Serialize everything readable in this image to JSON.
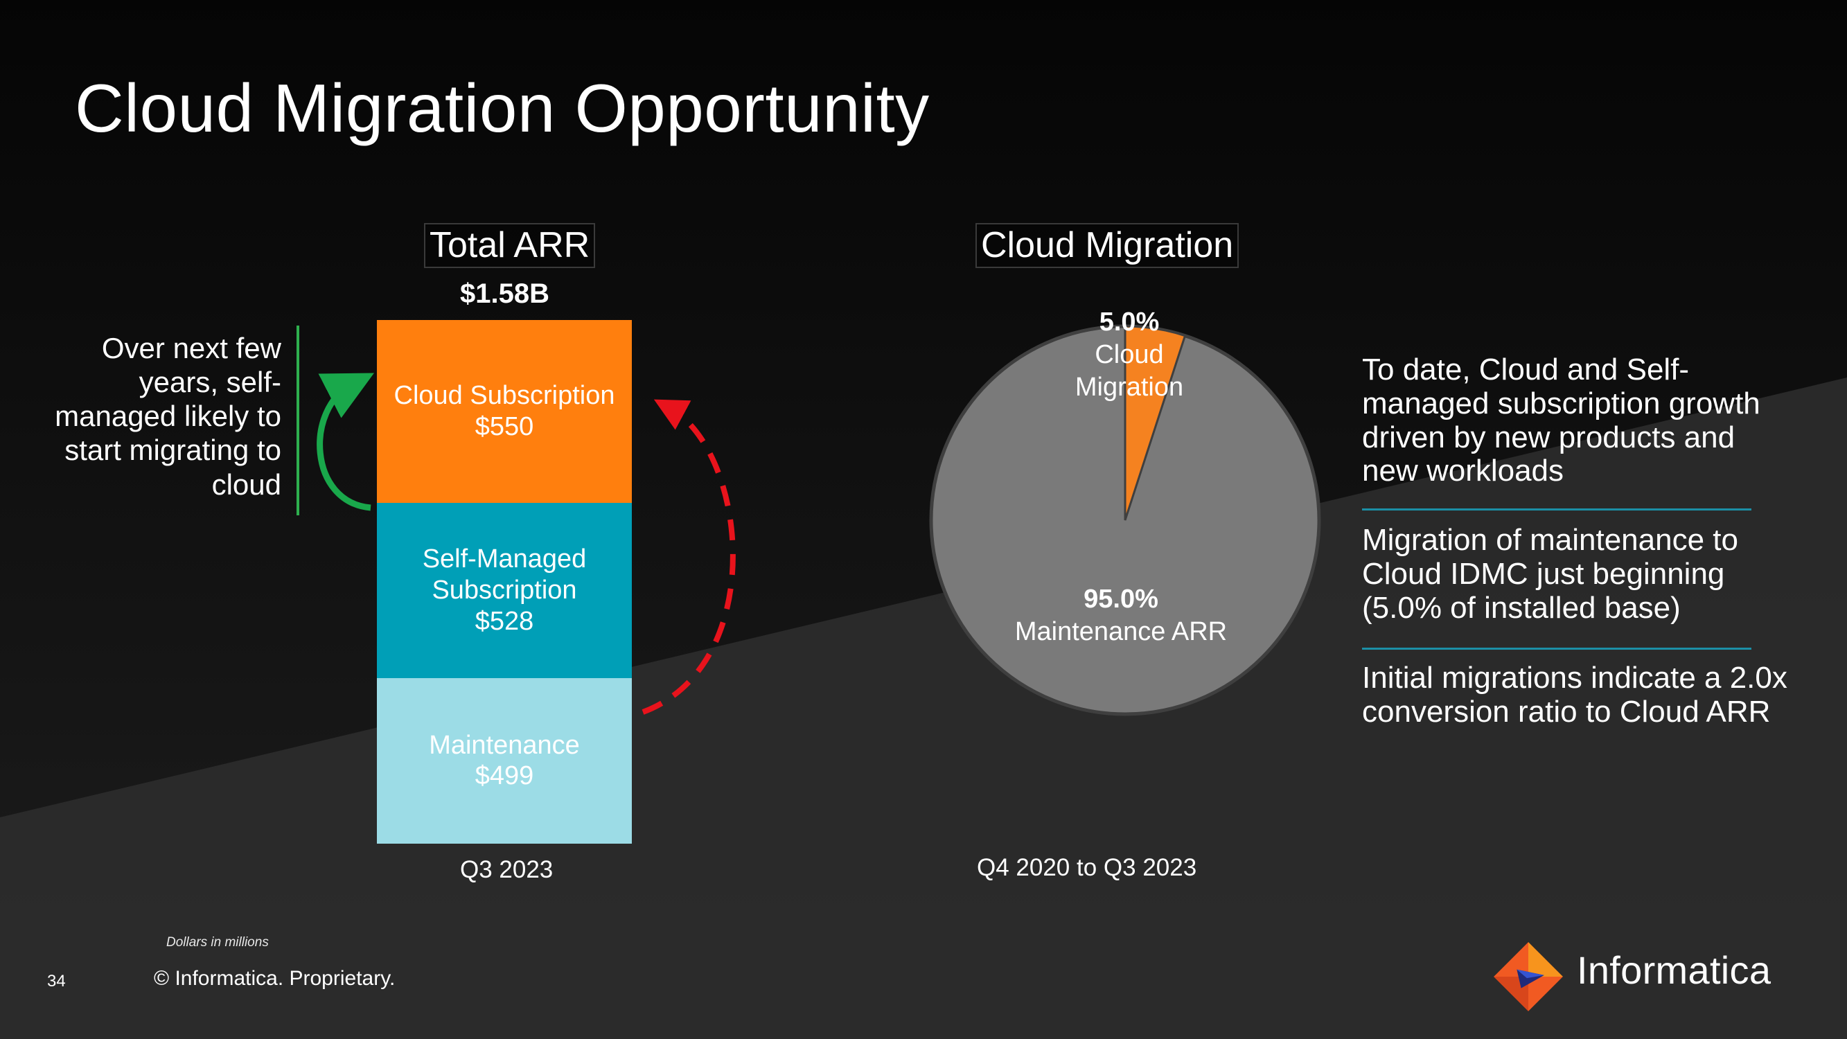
{
  "slide": {
    "title": "Cloud Migration Opportunity",
    "page_number": "34",
    "copyright": "© Informatica. Proprietary.",
    "footnote": "Dollars in millions",
    "brand": "Informatica"
  },
  "left_panel": {
    "heading": "Total ARR",
    "total": "$1.58B",
    "period": "Q3 2023",
    "side_note": "Over next few years, self-managed likely to start migrating to cloud"
  },
  "right_panel": {
    "heading": "Cloud Migration",
    "period": "Q4 2020 to Q3 2023"
  },
  "bullets": [
    "To date, Cloud and Self-managed subscription growth driven by new products and new workloads",
    "Migration of maintenance to Cloud IDMC just beginning (5.0% of installed base)",
    "Initial migrations indicate  a 2.0x conversion ratio to Cloud ARR"
  ],
  "colors": {
    "cloud_subscription": "#ff7f0e",
    "self_managed": "#009fb7",
    "maintenance": "#9cdce6",
    "pie_main": "#7a7a7a",
    "pie_slice": "#f58220",
    "green_arrow": "#19a84b",
    "red_arrow": "#e8131c",
    "separator": "#1b8fa6"
  },
  "chart_data": [
    {
      "type": "bar",
      "stacked": true,
      "title": "Total ARR",
      "categories": [
        "Q3 2023"
      ],
      "total_label": "$1.58B",
      "series": [
        {
          "name": "Maintenance",
          "values": [
            499
          ],
          "label": "$499"
        },
        {
          "name": "Self-Managed Subscription",
          "values": [
            528
          ],
          "label": "$528"
        },
        {
          "name": "Cloud Subscription",
          "values": [
            550
          ],
          "label": "$550"
        }
      ]
    },
    {
      "type": "pie",
      "title": "Cloud Migration",
      "subtitle": "Q4 2020 to Q3 2023",
      "slices": [
        {
          "label": "Cloud Migration",
          "value": 5.0,
          "display": "5.0%"
        },
        {
          "label": "Maintenance ARR",
          "value": 95.0,
          "display": "95.0%"
        }
      ]
    }
  ]
}
